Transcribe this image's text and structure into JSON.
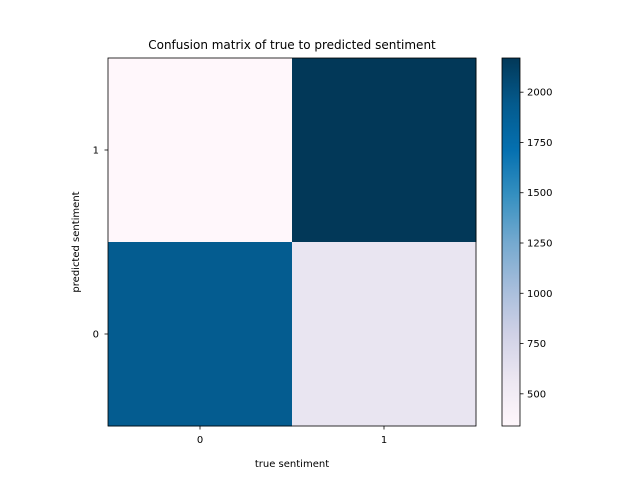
{
  "chart_data": {
    "type": "heatmap",
    "title": "Confusion matrix of true to predicted sentiment",
    "xlabel": "true sentiment",
    "ylabel": "predicted sentiment",
    "x_categories": [
      "0",
      "1"
    ],
    "y_categories": [
      "0",
      "1"
    ],
    "cells": [
      {
        "x": "0",
        "y": "1",
        "value": 340
      },
      {
        "x": "1",
        "y": "1",
        "value": 2170
      },
      {
        "x": "0",
        "y": "0",
        "value": 1920
      },
      {
        "x": "1",
        "y": "0",
        "value": 590
      }
    ],
    "colormap": "PuBu",
    "colorbar": {
      "range": [
        340,
        2170
      ],
      "ticks": [
        500,
        750,
        1000,
        1250,
        1500,
        1750,
        2000
      ],
      "tick_labels": [
        "500",
        "750",
        "1000",
        "1250",
        "1500",
        "1750",
        "2000"
      ]
    },
    "grid": false,
    "legend": "colorbar-right"
  }
}
